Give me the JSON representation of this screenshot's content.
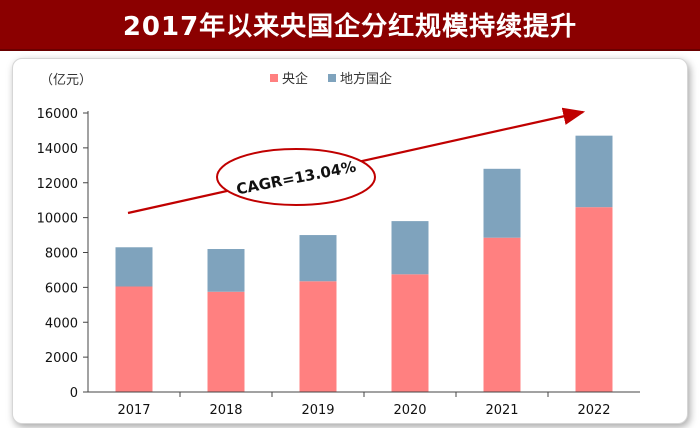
{
  "header": {
    "title": "2017年以来央国企分红规模持续提升"
  },
  "chart_data": {
    "type": "bar",
    "stacked": true,
    "title": "2017年以来央国企分红规模持续提升",
    "unit_label": "（亿元）",
    "categories": [
      "2017",
      "2018",
      "2019",
      "2020",
      "2021",
      "2022"
    ],
    "series": [
      {
        "name": "央企",
        "color": "#ff8080",
        "values": [
          6050,
          5750,
          6350,
          6750,
          8850,
          10600
        ]
      },
      {
        "name": "地方国企",
        "color": "#7fa3bd",
        "values": [
          2250,
          2450,
          2650,
          3050,
          3950,
          4100
        ]
      }
    ],
    "ylim": [
      0,
      16000
    ],
    "yticks": [
      0,
      2000,
      4000,
      6000,
      8000,
      10000,
      12000,
      14000,
      16000
    ],
    "legend_position": "top-center",
    "annotation": {
      "text": "CAGR=13.04%",
      "arrow_color": "#c00000"
    }
  }
}
